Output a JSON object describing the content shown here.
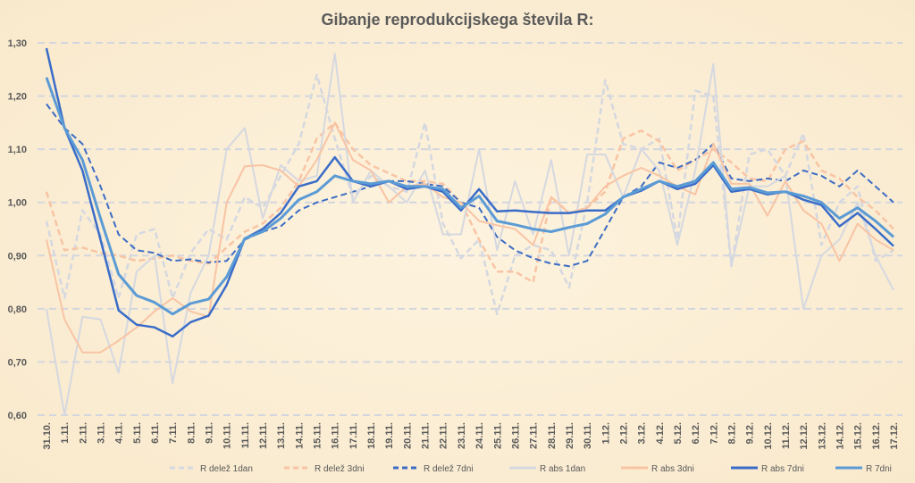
{
  "chart_data": {
    "type": "line",
    "title": "Gibanje reprodukcijskega števila R:",
    "xlabel": "",
    "ylabel": "",
    "ylim": [
      0.6,
      1.3
    ],
    "yticks": [
      "0,60",
      "0,70",
      "0,80",
      "0,90",
      "1,00",
      "1,10",
      "1,20",
      "1,30"
    ],
    "grid": true,
    "legend_position": "bottom",
    "categories": [
      "31.10.",
      "1.11.",
      "2.11.",
      "3.11.",
      "4.11.",
      "5.11.",
      "6.11.",
      "7.11.",
      "8.11.",
      "9.11.",
      "10.11.",
      "11.11.",
      "12.11.",
      "13.11.",
      "14.11.",
      "15.11.",
      "16.11.",
      "17.11.",
      "18.11.",
      "19.11.",
      "20.11.",
      "21.11.",
      "22.11.",
      "23.11.",
      "24.11.",
      "25.11.",
      "26.11.",
      "27.11.",
      "28.11.",
      "29.11.",
      "30.11.",
      "1.12.",
      "2.12.",
      "3.12.",
      "4.12.",
      "5.12.",
      "6.12.",
      "7.12.",
      "8.12.",
      "9.12.",
      "10.12.",
      "11.12.",
      "12.12.",
      "13.12.",
      "14.12.",
      "15.12.",
      "16.12.",
      "17.12."
    ],
    "series": [
      {
        "name": "R delež 1dan",
        "color": "#d5d8e0",
        "dash": "dash",
        "width": 2.5,
        "values": [
          0.965,
          0.82,
          0.985,
          0.94,
          0.82,
          0.94,
          0.95,
          0.82,
          0.905,
          0.95,
          0.93,
          1.01,
          0.99,
          1.05,
          1.11,
          1.24,
          1.12,
          1.01,
          1.05,
          1.03,
          1.02,
          1.15,
          0.96,
          0.895,
          0.93,
          0.79,
          0.9,
          0.92,
          0.91,
          0.84,
          1.0,
          1.23,
          1.11,
          1.1,
          1.12,
          0.93,
          1.21,
          1.2,
          0.88,
          1.09,
          1.1,
          1.05,
          1.13,
          0.92,
          1.0,
          1.03,
          0.89,
          0.91
        ]
      },
      {
        "name": "R delež 3dni",
        "color": "#f8c4a4",
        "dash": "dash",
        "width": 2.5,
        "values": [
          1.02,
          0.91,
          0.915,
          0.905,
          0.9,
          0.89,
          0.895,
          0.9,
          0.89,
          0.885,
          0.915,
          0.945,
          0.96,
          0.99,
          1.04,
          1.12,
          1.15,
          1.1,
          1.07,
          1.055,
          1.04,
          1.04,
          1.035,
          1.0,
          0.93,
          0.87,
          0.87,
          0.85,
          1.01,
          0.98,
          0.99,
          1.02,
          1.12,
          1.135,
          1.115,
          1.06,
          1.08,
          1.1,
          1.075,
          1.045,
          1.04,
          1.1,
          1.115,
          1.06,
          1.045,
          1.01,
          0.985,
          0.95
        ]
      },
      {
        "name": "R delež 7dni",
        "color": "#3c6cc4",
        "dash": "dash",
        "width": 2,
        "values": [
          1.185,
          1.14,
          1.11,
          1.03,
          0.94,
          0.91,
          0.905,
          0.89,
          0.893,
          0.887,
          0.89,
          0.93,
          0.945,
          0.955,
          0.985,
          1.0,
          1.01,
          1.02,
          1.03,
          1.04,
          1.04,
          1.035,
          1.03,
          1.0,
          0.99,
          0.935,
          0.91,
          0.895,
          0.885,
          0.88,
          0.89,
          0.95,
          1.01,
          1.03,
          1.075,
          1.065,
          1.08,
          1.11,
          1.045,
          1.04,
          1.045,
          1.04,
          1.06,
          1.05,
          1.03,
          1.06,
          1.03,
          1.0
        ]
      },
      {
        "name": "R abs 1dan",
        "color": "#d5d8e0",
        "dash": "solid",
        "width": 2,
        "values": [
          0.8,
          0.6,
          0.785,
          0.78,
          0.68,
          0.87,
          0.9,
          0.66,
          0.83,
          0.9,
          1.1,
          1.14,
          0.97,
          1.07,
          1.04,
          1.05,
          1.28,
          1.0,
          1.06,
          1.03,
          1.0,
          1.06,
          0.94,
          0.94,
          1.1,
          0.91,
          1.04,
          0.94,
          1.08,
          0.9,
          1.09,
          1.09,
          1.01,
          1.1,
          1.06,
          0.92,
          1.06,
          1.26,
          0.88,
          1.03,
          1.03,
          1.05,
          0.8,
          0.9,
          0.93,
          1.0,
          0.9,
          0.835
        ]
      },
      {
        "name": "R abs 3dni",
        "color": "#f8c4a4",
        "dash": "solid",
        "width": 2,
        "values": [
          0.93,
          0.78,
          0.718,
          0.718,
          0.74,
          0.765,
          0.795,
          0.82,
          0.795,
          0.785,
          1.0,
          1.068,
          1.07,
          1.06,
          1.03,
          1.08,
          1.15,
          1.08,
          1.06,
          1.0,
          1.03,
          1.035,
          1.01,
          1.0,
          0.965,
          0.957,
          0.95,
          0.92,
          1.01,
          0.98,
          0.99,
          1.03,
          1.05,
          1.065,
          1.05,
          1.03,
          1.015,
          1.11,
          1.035,
          1.035,
          0.975,
          1.04,
          0.985,
          0.96,
          0.89,
          0.96,
          0.93,
          0.91
        ]
      },
      {
        "name": "R abs 7dni",
        "color": "#3a6cc8",
        "dash": "solid",
        "width": 2.5,
        "values": [
          1.29,
          1.14,
          1.06,
          0.93,
          0.797,
          0.77,
          0.765,
          0.748,
          0.775,
          0.787,
          0.845,
          0.932,
          0.95,
          0.98,
          1.03,
          1.04,
          1.085,
          1.04,
          1.03,
          1.04,
          1.025,
          1.03,
          1.02,
          0.985,
          1.025,
          0.983,
          0.985,
          0.982,
          0.98,
          0.98,
          0.985,
          0.985,
          1.01,
          1.022,
          1.04,
          1.025,
          1.035,
          1.07,
          1.02,
          1.025,
          1.015,
          1.02,
          1.005,
          0.995,
          0.955,
          0.98,
          0.95,
          0.918
        ]
      },
      {
        "name": "R 7dni",
        "color": "#5b9bd5",
        "dash": "solid",
        "width": 3,
        "values": [
          1.235,
          1.14,
          1.08,
          0.97,
          0.865,
          0.825,
          0.812,
          0.79,
          0.81,
          0.818,
          0.86,
          0.932,
          0.945,
          0.97,
          1.005,
          1.02,
          1.05,
          1.04,
          1.035,
          1.04,
          1.03,
          1.03,
          1.025,
          0.99,
          1.012,
          0.965,
          0.958,
          0.95,
          0.945,
          0.953,
          0.96,
          0.978,
          1.01,
          1.025,
          1.04,
          1.03,
          1.04,
          1.075,
          1.025,
          1.028,
          1.018,
          1.02,
          1.012,
          1.0,
          0.97,
          0.99,
          0.965,
          0.935
        ]
      }
    ]
  }
}
